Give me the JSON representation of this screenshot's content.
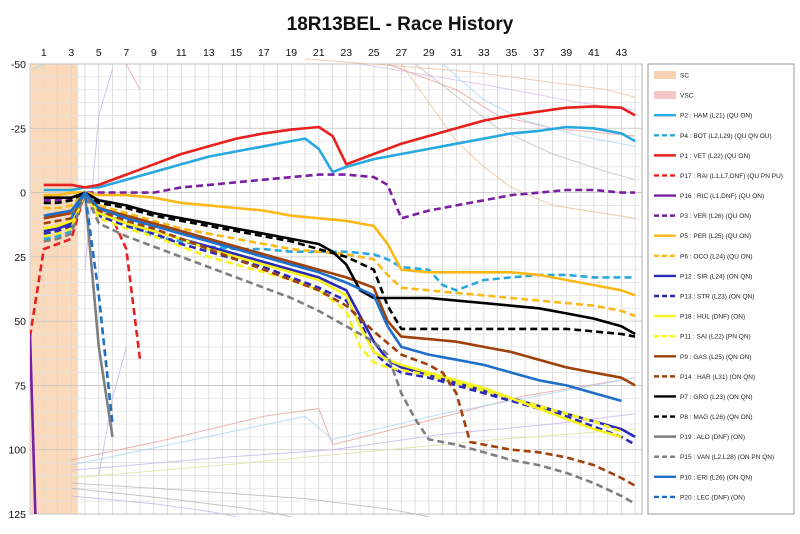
{
  "chart_data": {
    "type": "line",
    "title": "18R13BEL - Race History",
    "xlabel": "",
    "ylabel": "",
    "x_ticks": [
      1,
      3,
      5,
      7,
      9,
      11,
      13,
      15,
      17,
      19,
      21,
      23,
      25,
      27,
      29,
      31,
      33,
      35,
      37,
      39,
      41,
      43
    ],
    "xlim": [
      0,
      44.5
    ],
    "ylim": [
      -50,
      125
    ],
    "y_reversed": true,
    "y_ticks": [
      -50,
      -25,
      0,
      25,
      50,
      75,
      100,
      125
    ],
    "y_tick_labels": [
      "-50",
      "-25",
      "0",
      "25",
      "50",
      "75",
      "100",
      "125"
    ],
    "grid": true,
    "legend": "right",
    "sc_band": [
      0,
      3.5
    ],
    "series": [
      {
        "name": "SC",
        "kind": "band",
        "color": "#f9d3b1"
      },
      {
        "name": "VSC",
        "kind": "band",
        "color": "#f5c6c6"
      },
      {
        "name": "P2 : HAM (L21) (QU ON)",
        "color": "#29a8e0",
        "dash": false,
        "x": [
          1,
          2,
          3,
          4,
          5,
          7,
          9,
          11,
          13,
          15,
          17,
          19,
          20,
          21,
          22,
          23,
          25,
          27,
          29,
          31,
          33,
          35,
          37,
          39,
          41,
          43,
          44
        ],
        "y": [
          -1,
          -1,
          -1,
          -2,
          -2,
          -5,
          -8,
          -11,
          -14,
          -16,
          -18,
          -20,
          -21,
          -17,
          -8,
          -10,
          -13,
          -15,
          -17,
          -19,
          -21,
          -23,
          -24,
          -25.5,
          -25,
          -23,
          -20
        ]
      },
      {
        "name": "P4 : BOT (L2,L29) (QU QN OU)",
        "color": "#29a8e0",
        "dash": true,
        "x": [
          1,
          2,
          3,
          4,
          5,
          7,
          9,
          11,
          13,
          15,
          17,
          19,
          21,
          23,
          25,
          26,
          27,
          29,
          30,
          31,
          33,
          35,
          37,
          39,
          41,
          43,
          44
        ],
        "y": [
          18,
          17,
          15,
          0,
          7,
          12,
          17,
          19,
          21,
          22,
          22,
          23,
          23,
          23,
          24,
          26,
          29,
          30,
          36,
          38,
          34,
          33,
          32,
          32,
          33,
          33,
          33
        ]
      },
      {
        "name": "P1 : VET (L22) (QU ON)",
        "color": "#e8201e",
        "dash": false,
        "x": [
          1,
          2,
          3,
          4,
          5,
          7,
          9,
          11,
          13,
          15,
          17,
          19,
          21,
          22,
          23,
          25,
          27,
          29,
          31,
          33,
          35,
          37,
          39,
          41,
          43,
          44
        ],
        "y": [
          -3,
          -3,
          -3,
          -2,
          -3,
          -7,
          -11,
          -15,
          -18,
          -21,
          -23,
          -24.5,
          -25.5,
          -22,
          -11,
          -15,
          -19,
          -22,
          -25,
          -28,
          -30,
          -31.5,
          -33,
          -33.5,
          -33,
          -30
        ]
      },
      {
        "name": "P17 : RAI (L1,L7,DNF) (QU PN PU)",
        "color": "#e8201e",
        "dash": true,
        "x": [
          0,
          1,
          2,
          3,
          4,
          5,
          6,
          7,
          8
        ],
        "y": [
          56,
          22,
          20,
          18,
          0,
          5,
          10,
          22,
          65
        ]
      },
      {
        "name": "P16 : RIC (L1,DNF) (QU ON)",
        "color": "#7a1fa2",
        "dash": false,
        "x": [
          0,
          0.4
        ],
        "y": [
          55,
          127
        ]
      },
      {
        "name": "P3 : VER (L26) (QU ON)",
        "color": "#7a1fa2",
        "dash": true,
        "x": [
          1,
          2,
          3,
          4,
          5,
          7,
          9,
          11,
          13,
          15,
          17,
          19,
          21,
          23,
          25,
          26,
          27,
          29,
          31,
          33,
          35,
          37,
          39,
          41,
          43,
          44
        ],
        "y": [
          3,
          3,
          2,
          0,
          0,
          0,
          0,
          -2,
          -3,
          -4,
          -5,
          -6,
          -7,
          -7,
          -6,
          -3,
          10,
          7,
          5,
          3,
          1,
          0,
          -1,
          -1,
          0,
          0
        ]
      },
      {
        "name": "P5 : PER (L25) (QU ON)",
        "color": "#fbb817",
        "dash": false,
        "x": [
          1,
          2,
          3,
          4,
          5,
          7,
          9,
          11,
          13,
          15,
          17,
          19,
          21,
          23,
          25,
          26,
          27,
          29,
          31,
          33,
          35,
          37,
          39,
          41,
          43,
          44
        ],
        "y": [
          1,
          1,
          0,
          0,
          1,
          1,
          2,
          4,
          5,
          6,
          7,
          9,
          10,
          11,
          13,
          20,
          30,
          31,
          31,
          31,
          31,
          32,
          34,
          36,
          38,
          40
        ]
      },
      {
        "name": "P6 : OCO (L24) (QU ON)",
        "color": "#fbb817",
        "dash": true,
        "x": [
          1,
          2,
          3,
          4,
          5,
          7,
          9,
          11,
          13,
          15,
          17,
          19,
          21,
          23,
          25,
          26,
          27,
          29,
          31,
          33,
          35,
          37,
          39,
          41,
          43,
          44
        ],
        "y": [
          6,
          6,
          5,
          0,
          5,
          8,
          11,
          14,
          16,
          18,
          20,
          22,
          23,
          24,
          26,
          32,
          37,
          38,
          39,
          40,
          41,
          42,
          43,
          44,
          46,
          48
        ]
      },
      {
        "name": "P12 : SIR (L24) (ON QN)",
        "color": "#2b2ab8",
        "dash": false,
        "x": [
          1,
          2,
          3,
          4,
          5,
          7,
          9,
          11,
          13,
          15,
          17,
          19,
          21,
          23,
          24,
          25,
          26,
          27,
          29,
          31,
          33,
          35,
          37,
          39,
          41,
          43,
          44
        ],
        "y": [
          15,
          14,
          12,
          0,
          8,
          12,
          15,
          18,
          21,
          24,
          27,
          30,
          33,
          38,
          48,
          58,
          65,
          68,
          71,
          74,
          77,
          80,
          83,
          86,
          89,
          92,
          95
        ]
      },
      {
        "name": "P13 : STR (L23) (ON QN)",
        "color": "#2b2ab8",
        "dash": true,
        "x": [
          1,
          2,
          3,
          4,
          5,
          7,
          9,
          11,
          13,
          15,
          17,
          19,
          21,
          23,
          24,
          25,
          26,
          27,
          29,
          31,
          33,
          35,
          37,
          39,
          41,
          43,
          44
        ],
        "y": [
          16,
          15,
          13,
          0,
          9,
          13,
          16,
          20,
          23,
          26,
          29,
          33,
          37,
          42,
          50,
          62,
          67,
          70,
          72,
          75,
          78,
          81,
          84,
          87,
          91,
          95,
          98
        ]
      },
      {
        "name": "P18 : HUL (DNF) (ON)",
        "color": "#f7f31c",
        "dash": false,
        "x": [
          1,
          2,
          3,
          4,
          5,
          7,
          9,
          11,
          13,
          15,
          17,
          19,
          21,
          23,
          24,
          25,
          26,
          27,
          29,
          31,
          33,
          35,
          37,
          39,
          41,
          43
        ],
        "y": [
          14,
          13,
          11,
          0,
          8,
          12,
          15,
          18,
          22,
          25,
          28,
          31,
          34,
          40,
          52,
          62,
          65,
          67,
          70,
          73,
          76,
          80,
          84,
          88,
          92,
          95
        ]
      },
      {
        "name": "P11 : SAI (L22) (PN QN)",
        "color": "#f7f31c",
        "dash": true,
        "x": [
          1,
          2,
          3,
          4,
          5,
          7,
          9,
          11,
          13,
          15,
          17,
          19,
          21,
          23,
          24,
          25,
          26,
          27,
          29,
          31,
          33,
          35,
          37,
          39,
          41,
          43
        ],
        "y": [
          17,
          16,
          14,
          0,
          10,
          14,
          17,
          21,
          25,
          28,
          31,
          34,
          38,
          46,
          60,
          66,
          68,
          69,
          71,
          74,
          77,
          80,
          83,
          86,
          89,
          93
        ]
      },
      {
        "name": "P9 : GAS (L25) (QN ON)",
        "color": "#a0400b",
        "dash": false,
        "x": [
          1,
          2,
          3,
          4,
          5,
          7,
          9,
          11,
          13,
          15,
          17,
          19,
          21,
          23,
          25,
          26,
          27,
          29,
          31,
          33,
          35,
          37,
          39,
          41,
          43,
          44
        ],
        "y": [
          10,
          9,
          8,
          0,
          6,
          9,
          12,
          15,
          18,
          21,
          24,
          27,
          30,
          33,
          37,
          50,
          56,
          57,
          58,
          60,
          62,
          65,
          68,
          70,
          72,
          75
        ]
      },
      {
        "name": "P14 : HAR (L31) (ON QN)",
        "color": "#a0400b",
        "dash": true,
        "x": [
          1,
          2,
          3,
          4,
          5,
          7,
          9,
          11,
          13,
          15,
          17,
          19,
          21,
          23,
          25,
          27,
          29,
          30,
          31,
          32,
          33,
          35,
          37,
          39,
          41,
          43,
          44
        ],
        "y": [
          12,
          11,
          10,
          0,
          7,
          11,
          14,
          18,
          22,
          26,
          30,
          34,
          38,
          44,
          54,
          63,
          67,
          70,
          78,
          97,
          98,
          100,
          101,
          103,
          106,
          111,
          114
        ]
      },
      {
        "name": "P7 : GRO (L23) (ON QN)",
        "color": "#000000",
        "dash": false,
        "x": [
          1,
          2,
          3,
          4,
          5,
          7,
          9,
          11,
          13,
          15,
          17,
          19,
          21,
          22,
          23,
          24,
          25,
          27,
          29,
          31,
          33,
          35,
          37,
          39,
          41,
          43,
          44
        ],
        "y": [
          2,
          2,
          2,
          0,
          3,
          5,
          8,
          10,
          12,
          14,
          16,
          18,
          20,
          23,
          28,
          38,
          41,
          41,
          41,
          42,
          43,
          44,
          45,
          47,
          49,
          52,
          55
        ]
      },
      {
        "name": "P8 : MAG (L26) (QN ON)",
        "color": "#000000",
        "dash": true,
        "x": [
          1,
          2,
          3,
          4,
          5,
          7,
          9,
          11,
          13,
          15,
          17,
          19,
          21,
          23,
          25,
          26,
          27,
          29,
          31,
          33,
          35,
          37,
          39,
          41,
          43,
          44
        ],
        "y": [
          4,
          4,
          3,
          0,
          4,
          6,
          9,
          11,
          13,
          15,
          17,
          19,
          22,
          25,
          30,
          44,
          53,
          53,
          53,
          53,
          53,
          53,
          53,
          54,
          55,
          56
        ]
      },
      {
        "name": "P19 : ALO (DNF) (ON)",
        "color": "#7f7f7f",
        "dash": false,
        "x": [
          3,
          4,
          5,
          6
        ],
        "y": [
          8,
          0,
          60,
          95
        ]
      },
      {
        "name": "P15 : VAN (L2,L28) (ON PN QN)",
        "color": "#7f7f7f",
        "dash": true,
        "x": [
          1,
          2,
          3,
          4,
          5,
          7,
          9,
          11,
          13,
          15,
          17,
          19,
          21,
          23,
          25,
          26,
          27,
          28,
          29,
          31,
          33,
          35,
          37,
          39,
          41,
          43,
          44
        ],
        "y": [
          19,
          18,
          16,
          0,
          12,
          17,
          21,
          25,
          29,
          33,
          37,
          41,
          46,
          52,
          58,
          63,
          78,
          88,
          96,
          98,
          101,
          104,
          106,
          109,
          113,
          118,
          121
        ]
      },
      {
        "name": "P10 : ERI (L26) (ON QN)",
        "color": "#1f6ec8",
        "dash": false,
        "x": [
          1,
          2,
          3,
          4,
          5,
          7,
          9,
          11,
          13,
          15,
          17,
          19,
          21,
          23,
          25,
          26,
          27,
          29,
          31,
          33,
          35,
          37,
          39,
          41,
          43
        ],
        "y": [
          9,
          8,
          7,
          0,
          6,
          10,
          13,
          16,
          19,
          22,
          25,
          28,
          31,
          35,
          40,
          52,
          60,
          63,
          65,
          67,
          70,
          73,
          75,
          78,
          81
        ]
      },
      {
        "name": "P20 : LEC (DNF) (ON)",
        "color": "#1f6ec8",
        "dash": true,
        "x": [
          3,
          4,
          5,
          6
        ],
        "y": [
          10,
          0,
          40,
          90
        ]
      }
    ]
  }
}
